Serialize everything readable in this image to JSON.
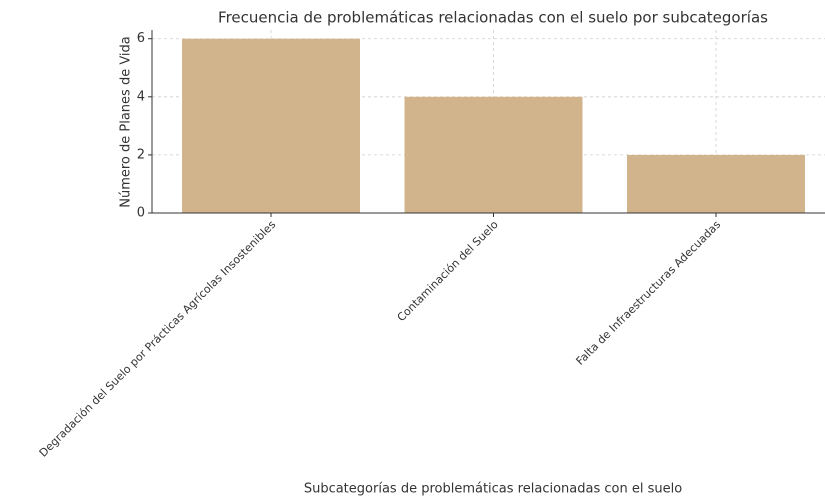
{
  "chart_data": {
    "type": "bar",
    "title": "Frecuencia de problemáticas relacionadas con el suelo por subcategorías",
    "x_label": "Subcategorías de problemáticas relacionadas con el suelo",
    "y_label": "Número de Planes de Vida",
    "categories": [
      "Degradación del Suelo por Prácticas Agrícolas Insostenibles",
      "Contaminación del Suelo",
      "Falta de Infraestructuras Adecuadas"
    ],
    "values": [
      6,
      4,
      2
    ],
    "color": "#d2b48c",
    "ylim": [
      0,
      6.3
    ],
    "yticks": [
      0,
      2,
      4,
      6
    ],
    "grid": true
  }
}
